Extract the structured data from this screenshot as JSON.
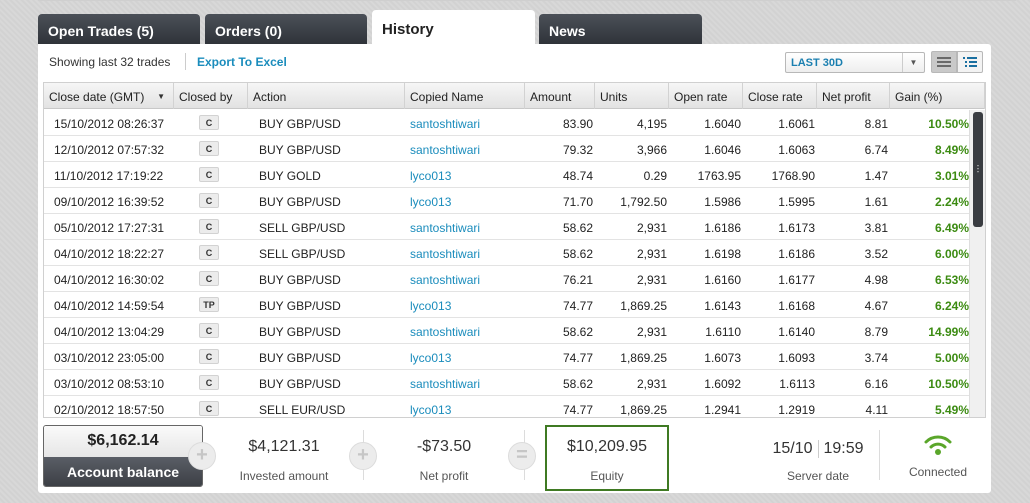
{
  "tabs": [
    {
      "label": "Open Trades (5)"
    },
    {
      "label": "Orders (0)"
    },
    {
      "label": "History"
    },
    {
      "label": "News"
    }
  ],
  "toolbar": {
    "showing": "Showing last 32 trades",
    "export": "Export To Excel",
    "period": "LAST 30D"
  },
  "columns": [
    "Close date (GMT)",
    "Closed by",
    "Action",
    "Copied Name",
    "Amount",
    "Units",
    "Open rate",
    "Close rate",
    "Net profit",
    "Gain (%)"
  ],
  "rows": [
    {
      "date": "15/10/2012 08:26:37",
      "closed_by": "C",
      "action": "BUY GBP/USD",
      "name": "santoshtiwari",
      "amount": "83.90",
      "units": "4,195",
      "open": "1.6040",
      "close": "1.6061",
      "profit": "8.81",
      "gain": "10.50%"
    },
    {
      "date": "12/10/2012 07:57:32",
      "closed_by": "C",
      "action": "BUY GBP/USD",
      "name": "santoshtiwari",
      "amount": "79.32",
      "units": "3,966",
      "open": "1.6046",
      "close": "1.6063",
      "profit": "6.74",
      "gain": "8.49%"
    },
    {
      "date": "11/10/2012 17:19:22",
      "closed_by": "C",
      "action": "BUY GOLD",
      "name": "lyco013",
      "amount": "48.74",
      "units": "0.29",
      "open": "1763.95",
      "close": "1768.90",
      "profit": "1.47",
      "gain": "3.01%"
    },
    {
      "date": "09/10/2012 16:39:52",
      "closed_by": "C",
      "action": "BUY GBP/USD",
      "name": "lyco013",
      "amount": "71.70",
      "units": "1,792.50",
      "open": "1.5986",
      "close": "1.5995",
      "profit": "1.61",
      "gain": "2.24%"
    },
    {
      "date": "05/10/2012 17:27:31",
      "closed_by": "C",
      "action": "SELL GBP/USD",
      "name": "santoshtiwari",
      "amount": "58.62",
      "units": "2,931",
      "open": "1.6186",
      "close": "1.6173",
      "profit": "3.81",
      "gain": "6.49%"
    },
    {
      "date": "04/10/2012 18:22:27",
      "closed_by": "C",
      "action": "SELL GBP/USD",
      "name": "santoshtiwari",
      "amount": "58.62",
      "units": "2,931",
      "open": "1.6198",
      "close": "1.6186",
      "profit": "3.52",
      "gain": "6.00%"
    },
    {
      "date": "04/10/2012 16:30:02",
      "closed_by": "C",
      "action": "BUY GBP/USD",
      "name": "santoshtiwari",
      "amount": "76.21",
      "units": "2,931",
      "open": "1.6160",
      "close": "1.6177",
      "profit": "4.98",
      "gain": "6.53%"
    },
    {
      "date": "04/10/2012 14:59:54",
      "closed_by": "TP",
      "action": "BUY GBP/USD",
      "name": "lyco013",
      "amount": "74.77",
      "units": "1,869.25",
      "open": "1.6143",
      "close": "1.6168",
      "profit": "4.67",
      "gain": "6.24%"
    },
    {
      "date": "04/10/2012 13:04:29",
      "closed_by": "C",
      "action": "BUY GBP/USD",
      "name": "santoshtiwari",
      "amount": "58.62",
      "units": "2,931",
      "open": "1.6110",
      "close": "1.6140",
      "profit": "8.79",
      "gain": "14.99%"
    },
    {
      "date": "03/10/2012 23:05:00",
      "closed_by": "C",
      "action": "BUY GBP/USD",
      "name": "lyco013",
      "amount": "74.77",
      "units": "1,869.25",
      "open": "1.6073",
      "close": "1.6093",
      "profit": "3.74",
      "gain": "5.00%"
    },
    {
      "date": "03/10/2012 08:53:10",
      "closed_by": "C",
      "action": "BUY GBP/USD",
      "name": "santoshtiwari",
      "amount": "58.62",
      "units": "2,931",
      "open": "1.6092",
      "close": "1.6113",
      "profit": "6.16",
      "gain": "10.50%"
    },
    {
      "date": "02/10/2012 18:57:50",
      "closed_by": "C",
      "action": "SELL EUR/USD",
      "name": "lyco013",
      "amount": "74.77",
      "units": "1,869.25",
      "open": "1.2941",
      "close": "1.2919",
      "profit": "4.11",
      "gain": "5.49%"
    }
  ],
  "footer": {
    "balance_value": "$6,162.14",
    "balance_label": "Account balance",
    "plus_1": "+",
    "invested_value": "$4,121.31",
    "invested_label": "Invested amount",
    "plus_2": "+",
    "netprofit_value": "-$73.50",
    "netprofit_label": "Net profit",
    "equals": "=",
    "equity_value": "$10,209.95",
    "equity_label": "Equity",
    "server_date": "15/10",
    "server_time": "19:59",
    "server_label": "Server date",
    "connection_label": "Connected"
  },
  "colors": {
    "accent_link": "#1a8cbc",
    "gain_green": "#3c8b12",
    "equity_border": "#3f7a23",
    "tab_dark": "#3a3e45",
    "wifi_green": "#5aa62a"
  },
  "icons": {
    "sort": "sort-desc-icon",
    "dropdown": "chevron-down-icon",
    "list_view": "list-view-icon",
    "detail_view": "detail-view-icon",
    "scroll_grip": "grip-icon",
    "connection": "wifi-icon"
  }
}
